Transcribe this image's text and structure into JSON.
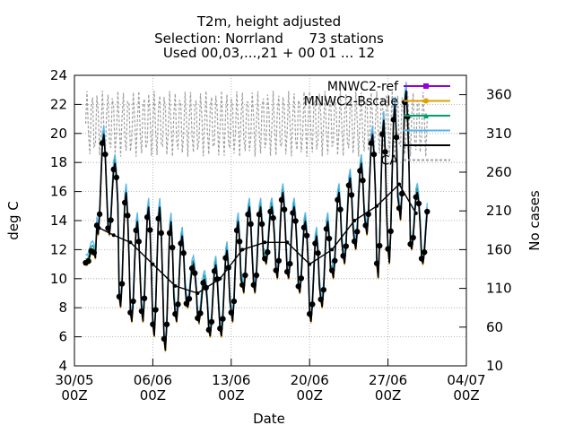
{
  "chart_data": {
    "type": "line",
    "title_lines": [
      "T2m, height adjusted",
      "Selection: Norrland      73 stations",
      "Used 00,03,...,21 + 00 01 ... 12"
    ],
    "xlabel": "Date",
    "ylabel": "deg C",
    "y2label": "No cases",
    "xlim": [
      0,
      35
    ],
    "x_ticks": [
      {
        "x": 0,
        "line1": "30/05",
        "line2": "00Z"
      },
      {
        "x": 7,
        "line1": "06/06",
        "line2": "00Z"
      },
      {
        "x": 14,
        "line1": "13/06",
        "line2": "00Z"
      },
      {
        "x": 21,
        "line1": "20/06",
        "line2": "00Z"
      },
      {
        "x": 28,
        "line1": "27/06",
        "line2": "00Z"
      },
      {
        "x": 35,
        "line1": "04/07",
        "line2": "00Z"
      }
    ],
    "ylim": [
      4,
      24
    ],
    "y_ticks": [
      4,
      6,
      8,
      10,
      12,
      14,
      16,
      18,
      20,
      22,
      24
    ],
    "y2lim": [
      10,
      385
    ],
    "y2_ticks": [
      10,
      60,
      110,
      160,
      210,
      260,
      310,
      360
    ],
    "grid": true,
    "legend_position": "top-right",
    "series": [
      {
        "name": "MNWC2-ref",
        "color": "#9400d3",
        "marker": "square",
        "offset": 0.0
      },
      {
        "name": "MNWC2-Bscale",
        "color": "#e69f00",
        "marker": "circle",
        "offset": -0.1
      },
      {
        "name": "",
        "color": "#009e73",
        "marker": "triangle",
        "offset": 0.3
      },
      {
        "name": "",
        "color": "#56b4e9",
        "marker": "none",
        "offset": 0.6
      },
      {
        "name": "",
        "color": "#000000",
        "marker": "plus",
        "offset": 0.0
      }
    ],
    "cases_series": {
      "name": "CA",
      "color": "#a0a0a0",
      "values_range": [
        280,
        365
      ]
    },
    "temperature_profile": {
      "start_x": 1.0,
      "end_x": 31.5,
      "step_days": 0.125,
      "daily_points": [
        {
          "x": 1,
          "min": 11,
          "max": 12
        },
        {
          "x": 2,
          "min": 13,
          "max": 20
        },
        {
          "x": 3,
          "min": 13,
          "max": 18
        },
        {
          "x": 4,
          "min": 8,
          "max": 16
        },
        {
          "x": 5,
          "min": 7,
          "max": 14
        },
        {
          "x": 6,
          "min": 7,
          "max": 15
        },
        {
          "x": 7,
          "min": 6,
          "max": 15
        },
        {
          "x": 8,
          "min": 5,
          "max": 14
        },
        {
          "x": 9,
          "min": 7,
          "max": 13
        },
        {
          "x": 10,
          "min": 8,
          "max": 11
        },
        {
          "x": 11,
          "min": 7,
          "max": 10
        },
        {
          "x": 12,
          "min": 6,
          "max": 11
        },
        {
          "x": 13,
          "min": 6,
          "max": 12
        },
        {
          "x": 14,
          "min": 7,
          "max": 14
        },
        {
          "x": 15,
          "min": 9,
          "max": 15
        },
        {
          "x": 16,
          "min": 9,
          "max": 15
        },
        {
          "x": 17,
          "min": 11,
          "max": 15
        },
        {
          "x": 18,
          "min": 10,
          "max": 16
        },
        {
          "x": 19,
          "min": 10,
          "max": 15
        },
        {
          "x": 20,
          "min": 9,
          "max": 14
        },
        {
          "x": 21,
          "min": 7,
          "max": 13
        },
        {
          "x": 22,
          "min": 8,
          "max": 14
        },
        {
          "x": 23,
          "min": 10,
          "max": 16
        },
        {
          "x": 24,
          "min": 11,
          "max": 17
        },
        {
          "x": 25,
          "min": 12,
          "max": 18
        },
        {
          "x": 26,
          "min": 13,
          "max": 20
        },
        {
          "x": 27,
          "min": 10,
          "max": 21
        },
        {
          "x": 28,
          "min": 11,
          "max": 22
        },
        {
          "x": 29,
          "min": 14,
          "max": 23
        },
        {
          "x": 30,
          "min": 12,
          "max": 16
        },
        {
          "x": 31,
          "min": 11,
          "max": 15
        }
      ]
    },
    "mean_series_points": [
      {
        "x": 2.2,
        "y": 13.5
      },
      {
        "x": 3.5,
        "y": 13.0
      },
      {
        "x": 5.0,
        "y": 12.5
      },
      {
        "x": 7.0,
        "y": 11.0
      },
      {
        "x": 9.0,
        "y": 9.5
      },
      {
        "x": 11.0,
        "y": 9.0
      },
      {
        "x": 13.0,
        "y": 10.0
      },
      {
        "x": 15.0,
        "y": 12.0
      },
      {
        "x": 17.0,
        "y": 12.5
      },
      {
        "x": 19.0,
        "y": 12.5
      },
      {
        "x": 21.0,
        "y": 11.0
      },
      {
        "x": 23.0,
        "y": 12.0
      },
      {
        "x": 25.0,
        "y": 14.0
      },
      {
        "x": 27.0,
        "y": 15.0
      },
      {
        "x": 29.0,
        "y": 16.5
      },
      {
        "x": 30.5,
        "y": 14.5
      }
    ]
  }
}
